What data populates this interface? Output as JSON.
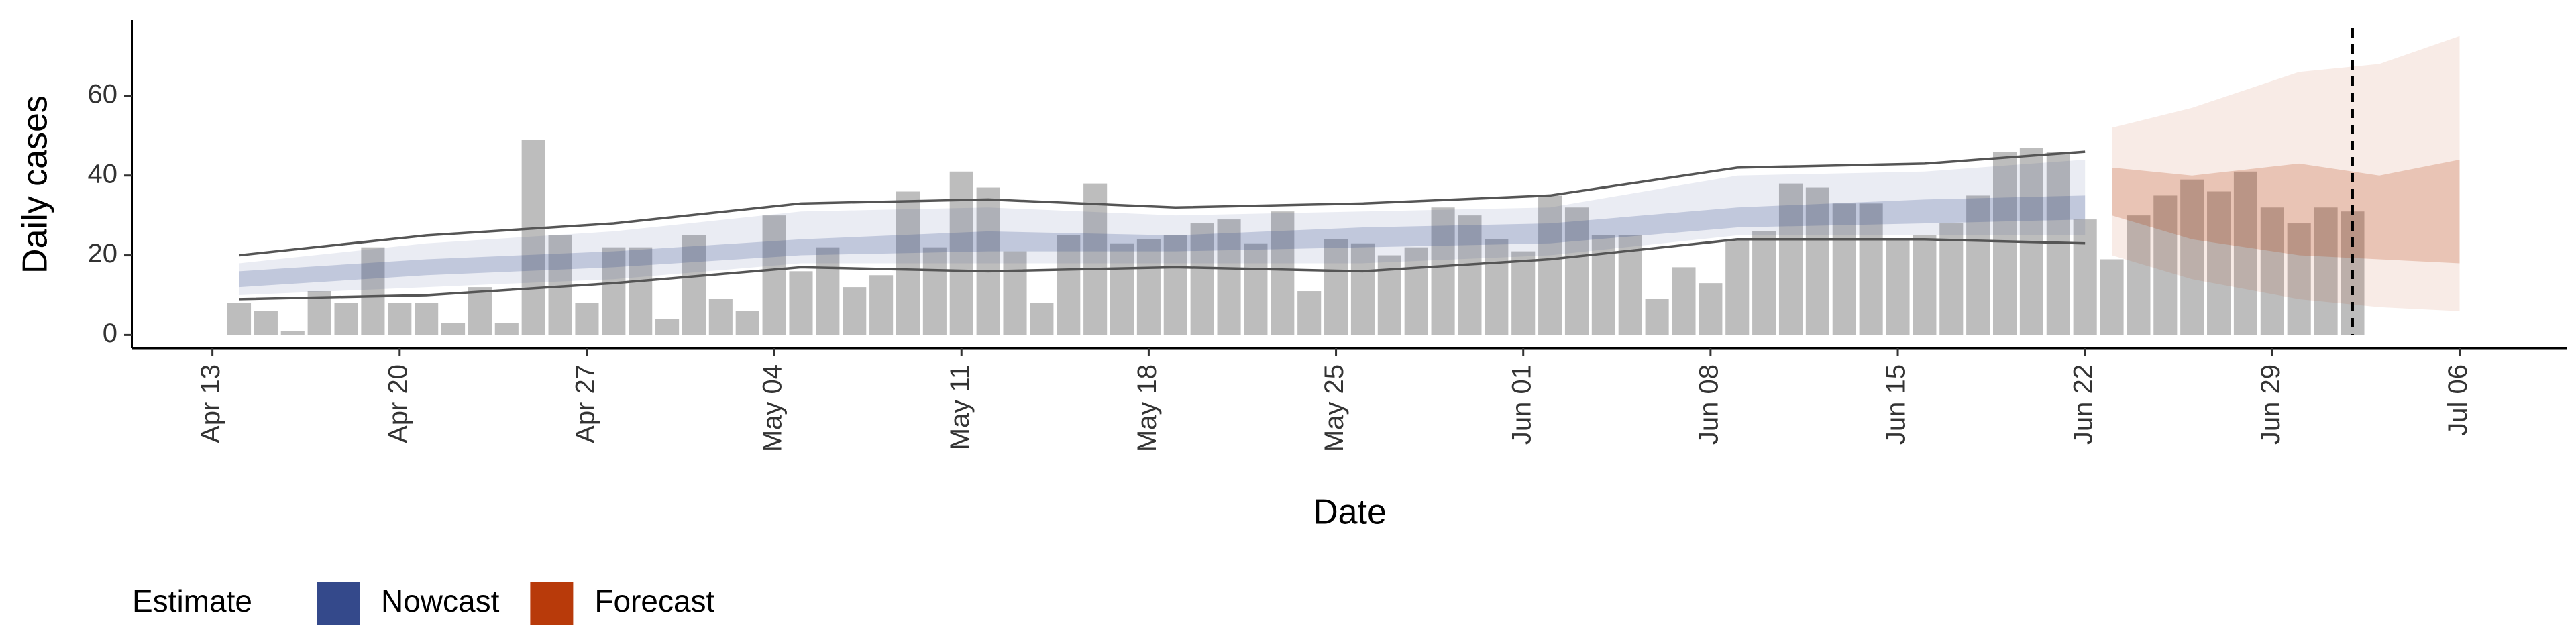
{
  "chart_data": {
    "type": "bar",
    "xlabel": "Date",
    "ylabel": "Daily cases",
    "xlim": [
      "Apr 10",
      "Jul 10"
    ],
    "xticks": [
      "Apr 13",
      "Apr 20",
      "Apr 27",
      "May 04",
      "May 11",
      "May 18",
      "May 25",
      "Jun 01",
      "Jun 08",
      "Jun 15",
      "Jun 22",
      "Jun 29",
      "Jul 06"
    ],
    "ylim": [
      -3.3,
      79
    ],
    "yticks": [
      0,
      20,
      40,
      60
    ],
    "color": "#bdbdbd",
    "vline": "Jul 02",
    "categories": [
      "Apr 14",
      "Apr 15",
      "Apr 16",
      "Apr 17",
      "Apr 18",
      "Apr 19",
      "Apr 20",
      "Apr 21",
      "Apr 22",
      "Apr 23",
      "Apr 24",
      "Apr 25",
      "Apr 26",
      "Apr 27",
      "Apr 28",
      "Apr 29",
      "Apr 30",
      "May 01",
      "May 02",
      "May 03",
      "May 04",
      "May 05",
      "May 06",
      "May 07",
      "May 08",
      "May 09",
      "May 10",
      "May 11",
      "May 12",
      "May 13",
      "May 14",
      "May 15",
      "May 16",
      "May 17",
      "May 18",
      "May 19",
      "May 20",
      "May 21",
      "May 22",
      "May 23",
      "May 24",
      "May 25",
      "May 26",
      "May 27",
      "May 28",
      "May 29",
      "May 30",
      "May 31",
      "Jun 01",
      "Jun 02",
      "Jun 03",
      "Jun 04",
      "Jun 05",
      "Jun 06",
      "Jun 07",
      "Jun 08",
      "Jun 09",
      "Jun 10",
      "Jun 11",
      "Jun 12",
      "Jun 13",
      "Jun 14",
      "Jun 15",
      "Jun 16",
      "Jun 17",
      "Jun 18",
      "Jun 19",
      "Jun 20",
      "Jun 21",
      "Jun 22",
      "Jun 23",
      "Jun 24",
      "Jun 25",
      "Jun 26",
      "Jun 27",
      "Jun 28",
      "Jun 29",
      "Jun 30",
      "Jul 01",
      "Jul 02"
    ],
    "values": [
      8,
      6,
      1,
      11,
      8,
      22,
      8,
      8,
      3,
      12,
      3,
      49,
      25,
      8,
      22,
      22,
      4,
      25,
      9,
      6,
      30,
      16,
      22,
      12,
      15,
      36,
      22,
      41,
      37,
      21,
      8,
      25,
      38,
      23,
      24,
      25,
      28,
      29,
      23,
      31,
      11,
      24,
      23,
      20,
      22,
      32,
      30,
      24,
      21,
      35,
      32,
      25,
      25,
      9,
      17,
      13,
      24,
      26,
      38,
      37,
      33,
      33,
      24,
      25,
      28,
      35,
      46,
      47,
      46,
      29,
      19,
      30,
      35,
      39,
      36,
      41,
      32,
      28,
      32,
      31
    ],
    "bands": [
      {
        "name": "Nowcast",
        "color": "#34498b",
        "x": [
          "Apr 14",
          "Apr 21",
          "Apr 28",
          "May 05",
          "May 12",
          "May 19",
          "May 26",
          "Jun 02",
          "Jun 09",
          "Jun 16",
          "Jun 22"
        ],
        "upper90": [
          18,
          23,
          26,
          31,
          32,
          30,
          31,
          32,
          40,
          41,
          44
        ],
        "lower90": [
          10,
          12,
          14,
          18,
          18,
          18,
          18,
          20,
          25,
          25,
          25
        ],
        "upper50": [
          16,
          19,
          21,
          24,
          26,
          25,
          27,
          28,
          32,
          34,
          35
        ],
        "lower50": [
          12,
          15,
          17,
          20,
          21,
          21,
          22,
          23,
          27,
          28,
          29
        ],
        "line_upper": [
          20,
          25,
          28,
          33,
          34,
          32,
          33,
          35,
          42,
          43,
          46
        ],
        "line_lower": [
          9,
          10,
          13,
          17,
          16,
          17,
          16,
          19,
          24,
          24,
          23
        ]
      },
      {
        "name": "Forecast",
        "color": "#b83a0a",
        "x": [
          "Jun 23",
          "Jun 26",
          "Jun 30",
          "Jul 03",
          "Jul 06"
        ],
        "upper90": [
          52,
          57,
          66,
          68,
          75
        ],
        "lower90": [
          20,
          14,
          9,
          7,
          6
        ],
        "upper50": [
          42,
          40,
          43,
          40,
          44
        ],
        "lower50": [
          30,
          24,
          20,
          19,
          18
        ]
      }
    ],
    "legend_title": "Estimate"
  }
}
